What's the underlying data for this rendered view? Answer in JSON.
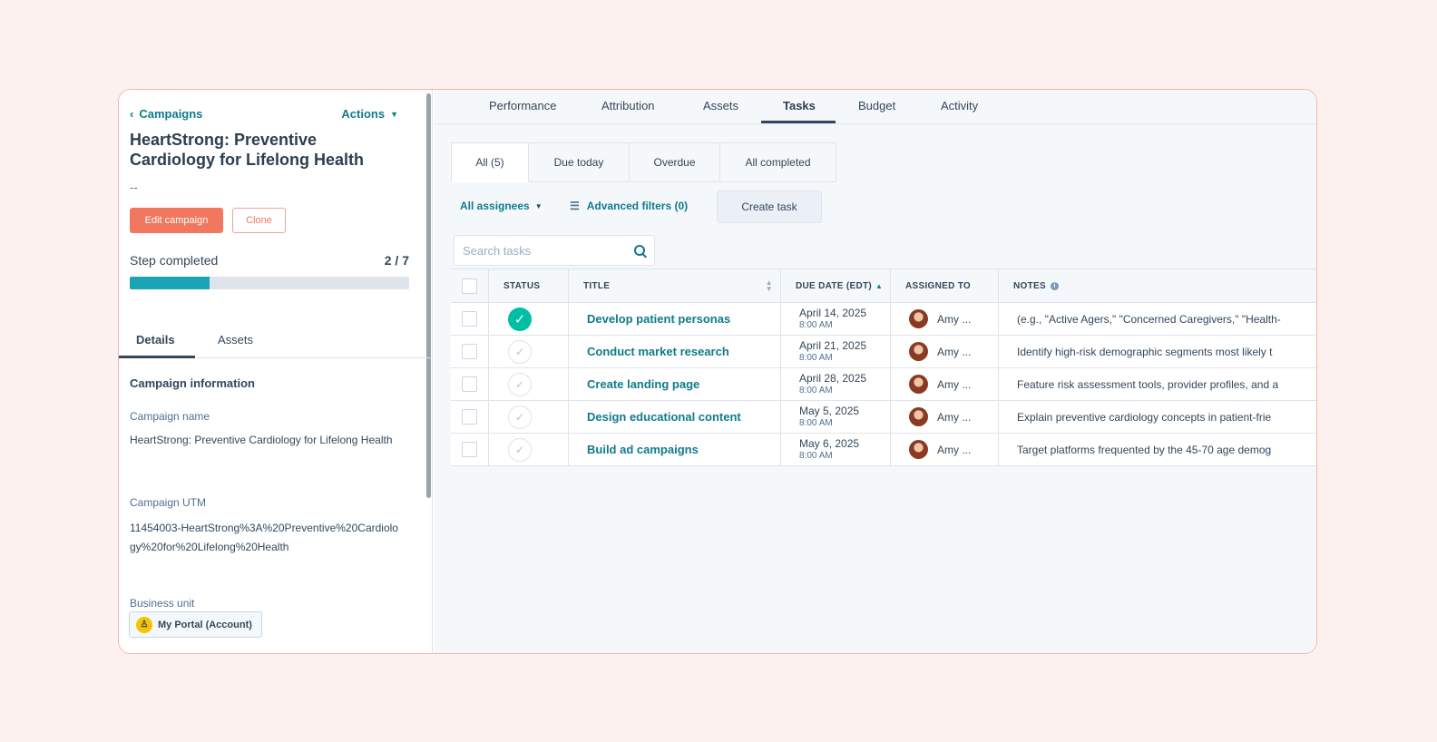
{
  "sidebar": {
    "back_label": "Campaigns",
    "actions_label": "Actions",
    "campaign_title": "HeartStrong: Preventive Cardiology for Lifelong Health",
    "subtitle_placeholder": "--",
    "edit_button": "Edit campaign",
    "clone_button": "Clone",
    "step_label": "Step completed",
    "step_count": "2 / 7",
    "step_progress_fraction": 0.286,
    "tabs": [
      {
        "label": "Details",
        "active": true
      },
      {
        "label": "Assets",
        "active": false
      }
    ],
    "section_title": "Campaign information",
    "fields": {
      "campaign_name_label": "Campaign name",
      "campaign_name_value": "HeartStrong: Preventive Cardiology for Lifelong Health",
      "utm_label": "Campaign UTM",
      "utm_value": "11454003-HeartStrong%3A%20Preventive%20Cardiology%20for%20Lifelong%20Health",
      "business_unit_label": "Business unit",
      "business_unit_value": "My Portal (Account)"
    }
  },
  "main": {
    "top_tabs": [
      {
        "label": "Performance",
        "active": false
      },
      {
        "label": "Attribution",
        "active": false
      },
      {
        "label": "Assets",
        "active": false
      },
      {
        "label": "Tasks",
        "active": true
      },
      {
        "label": "Budget",
        "active": false
      },
      {
        "label": "Activity",
        "active": false
      }
    ],
    "filter_tabs": [
      {
        "label": "All (5)",
        "active": true
      },
      {
        "label": "Due today",
        "active": false
      },
      {
        "label": "Overdue",
        "active": false
      },
      {
        "label": "All completed",
        "active": false
      }
    ],
    "assignees_label": "All assignees",
    "advanced_filters_label": "Advanced filters (0)",
    "create_task_label": "Create task",
    "search_placeholder": "Search tasks",
    "table": {
      "headers": {
        "status": "STATUS",
        "title": "TITLE",
        "due_date": "DUE DATE (EDT)",
        "assigned_to": "ASSIGNED TO",
        "notes": "NOTES"
      },
      "rows": [
        {
          "completed": true,
          "title": "Develop patient personas",
          "due_date": "April 14, 2025",
          "due_time": "8:00 AM",
          "assignee": "Amy ...",
          "notes": "(e.g., \"Active Agers,\" \"Concerned Caregivers,\" \"Health-"
        },
        {
          "completed": false,
          "title": "Conduct market research",
          "due_date": "April 21, 2025",
          "due_time": "8:00 AM",
          "assignee": "Amy ...",
          "notes": "Identify high-risk demographic segments most likely t"
        },
        {
          "completed": false,
          "title": "Create landing page",
          "due_date": "April 28, 2025",
          "due_time": "8:00 AM",
          "assignee": "Amy ...",
          "notes": "Feature risk assessment tools, provider profiles, and a"
        },
        {
          "completed": false,
          "title": "Design educational content",
          "due_date": "May 5, 2025",
          "due_time": "8:00 AM",
          "assignee": "Amy ...",
          "notes": "Explain preventive cardiology concepts in patient-frie"
        },
        {
          "completed": false,
          "title": "Build ad campaigns",
          "due_date": "May 6, 2025",
          "due_time": "8:00 AM",
          "assignee": "Amy ...",
          "notes": "Target platforms frequented by the 45-70 age demog"
        }
      ]
    }
  },
  "colors": {
    "accent": "#0f7b8c",
    "primary_button": "#f2775f",
    "progress": "#1aa4b4",
    "completed_status": "#00bda5"
  }
}
